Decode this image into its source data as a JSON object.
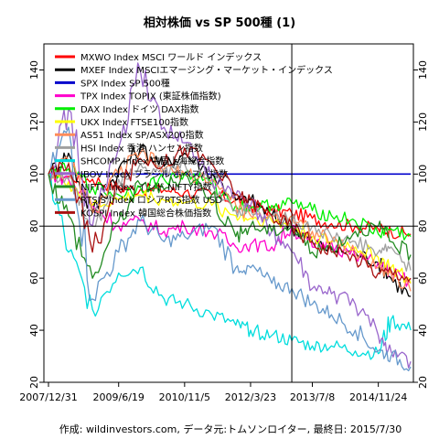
{
  "chart_data": {
    "type": "line",
    "title": "相対株価 vs SP 500種 (1)",
    "caption": "作成: wildinvestors.com, データ元:トムソンロイター, 最終日: 2015/7/30",
    "xlabel": "",
    "ylabel": "",
    "x_ticks": [
      "2007/12/31",
      "2009/6/19",
      "2010/11/5",
      "2012/3/23",
      "2013/7/8",
      "2014/11/24"
    ],
    "x": [
      "2007/12/31",
      "2008/6/1",
      "2008/12/1",
      "2009/6/19",
      "2009/12/1",
      "2010/6/1",
      "2010/11/5",
      "2011/6/1",
      "2011/12/1",
      "2012/3/23",
      "2012/9/1",
      "2013/2/1",
      "2013/7/8",
      "2013/12/1",
      "2014/6/1",
      "2014/11/24",
      "2015/3/1",
      "2015/7/30"
    ],
    "ylim": [
      20,
      150
    ],
    "y_ticks": [
      20,
      40,
      60,
      80,
      100,
      120,
      140
    ],
    "grid": false,
    "legend_position": "top-left",
    "reference_lines": {
      "horizontal": 80,
      "vertical_date": "2013/2/1"
    },
    "series": [
      {
        "name": "MXWO Index MSCI ワールド インデックス",
        "color": "#ff0000",
        "values": [
          100,
          99,
          98,
          95,
          94,
          94,
          93,
          92,
          90,
          88,
          86,
          85,
          83,
          81,
          80,
          79,
          78,
          77
        ]
      },
      {
        "name": "MXEF Index MSCIエマージング・マーケット・インデックス",
        "color": "#000000",
        "values": [
          100,
          108,
          85,
          102,
          110,
          103,
          108,
          100,
          90,
          90,
          84,
          80,
          74,
          71,
          70,
          66,
          60,
          53
        ]
      },
      {
        "name": "SPX Index SP 500種",
        "color": "#0000cc",
        "values": [
          100,
          100,
          100,
          100,
          100,
          100,
          100,
          100,
          100,
          100,
          100,
          100,
          100,
          100,
          100,
          100,
          100,
          100
        ]
      },
      {
        "name": "TPX Index TOPIX (東証株価指数)",
        "color": "#ff00cc",
        "values": [
          100,
          98,
          88,
          80,
          82,
          78,
          80,
          78,
          72,
          73,
          72,
          80,
          72,
          74,
          68,
          66,
          62,
          58
        ]
      },
      {
        "name": "DAX Index ドイツ DAX指数",
        "color": "#00ee00",
        "values": [
          100,
          102,
          95,
          92,
          95,
          98,
          100,
          96,
          88,
          87,
          88,
          89,
          86,
          84,
          82,
          77,
          79,
          76
        ]
      },
      {
        "name": "UKX Index FTSE100指数",
        "color": "#ffff00",
        "values": [
          100,
          97,
          88,
          90,
          92,
          90,
          89,
          88,
          84,
          83,
          82,
          80,
          76,
          74,
          72,
          68,
          64,
          58
        ]
      },
      {
        "name": "AS51 Index SP/ASX200指数",
        "color": "#ff8c5a",
        "values": [
          100,
          105,
          85,
          100,
          108,
          102,
          100,
          98,
          88,
          84,
          84,
          84,
          78,
          74,
          70,
          64,
          62,
          55
        ]
      },
      {
        "name": "HSI Index 香港 ハンセン指数",
        "color": "#a0a0a0",
        "values": [
          100,
          98,
          80,
          98,
          104,
          100,
          104,
          96,
          86,
          86,
          84,
          82,
          80,
          76,
          74,
          70,
          72,
          63
        ]
      },
      {
        "name": "SHCOMP Index 中国上海総合指数",
        "color": "#00dddd",
        "values": [
          100,
          70,
          48,
          62,
          64,
          52,
          50,
          46,
          42,
          40,
          38,
          36,
          34,
          34,
          32,
          31,
          44,
          40
        ]
      },
      {
        "name": "IBOV Index ブラジル ボベスパ指数",
        "color": "#9966cc",
        "values": [
          100,
          125,
          80,
          110,
          140,
          118,
          112,
          98,
          92,
          88,
          78,
          70,
          56,
          54,
          50,
          38,
          32,
          28
        ]
      },
      {
        "name": "NIFTY Index インド NIFTY指数",
        "color": "#228b22",
        "values": [
          100,
          84,
          60,
          82,
          96,
          94,
          100,
          92,
          76,
          80,
          78,
          80,
          70,
          72,
          78,
          80,
          74,
          69
        ]
      },
      {
        "name": "RTSIS Index ロシアRTS指数 USD",
        "color": "#6699cc",
        "values": [
          100,
          118,
          52,
          70,
          82,
          74,
          76,
          80,
          64,
          64,
          58,
          56,
          50,
          46,
          40,
          32,
          30,
          26
        ]
      },
      {
        "name": "KOSPI Index 韓国総合株価指数",
        "color": "#aa1111",
        "values": [
          100,
          104,
          70,
          94,
          106,
          104,
          110,
          104,
          92,
          90,
          84,
          80,
          74,
          70,
          68,
          62,
          63,
          60
        ]
      }
    ]
  }
}
